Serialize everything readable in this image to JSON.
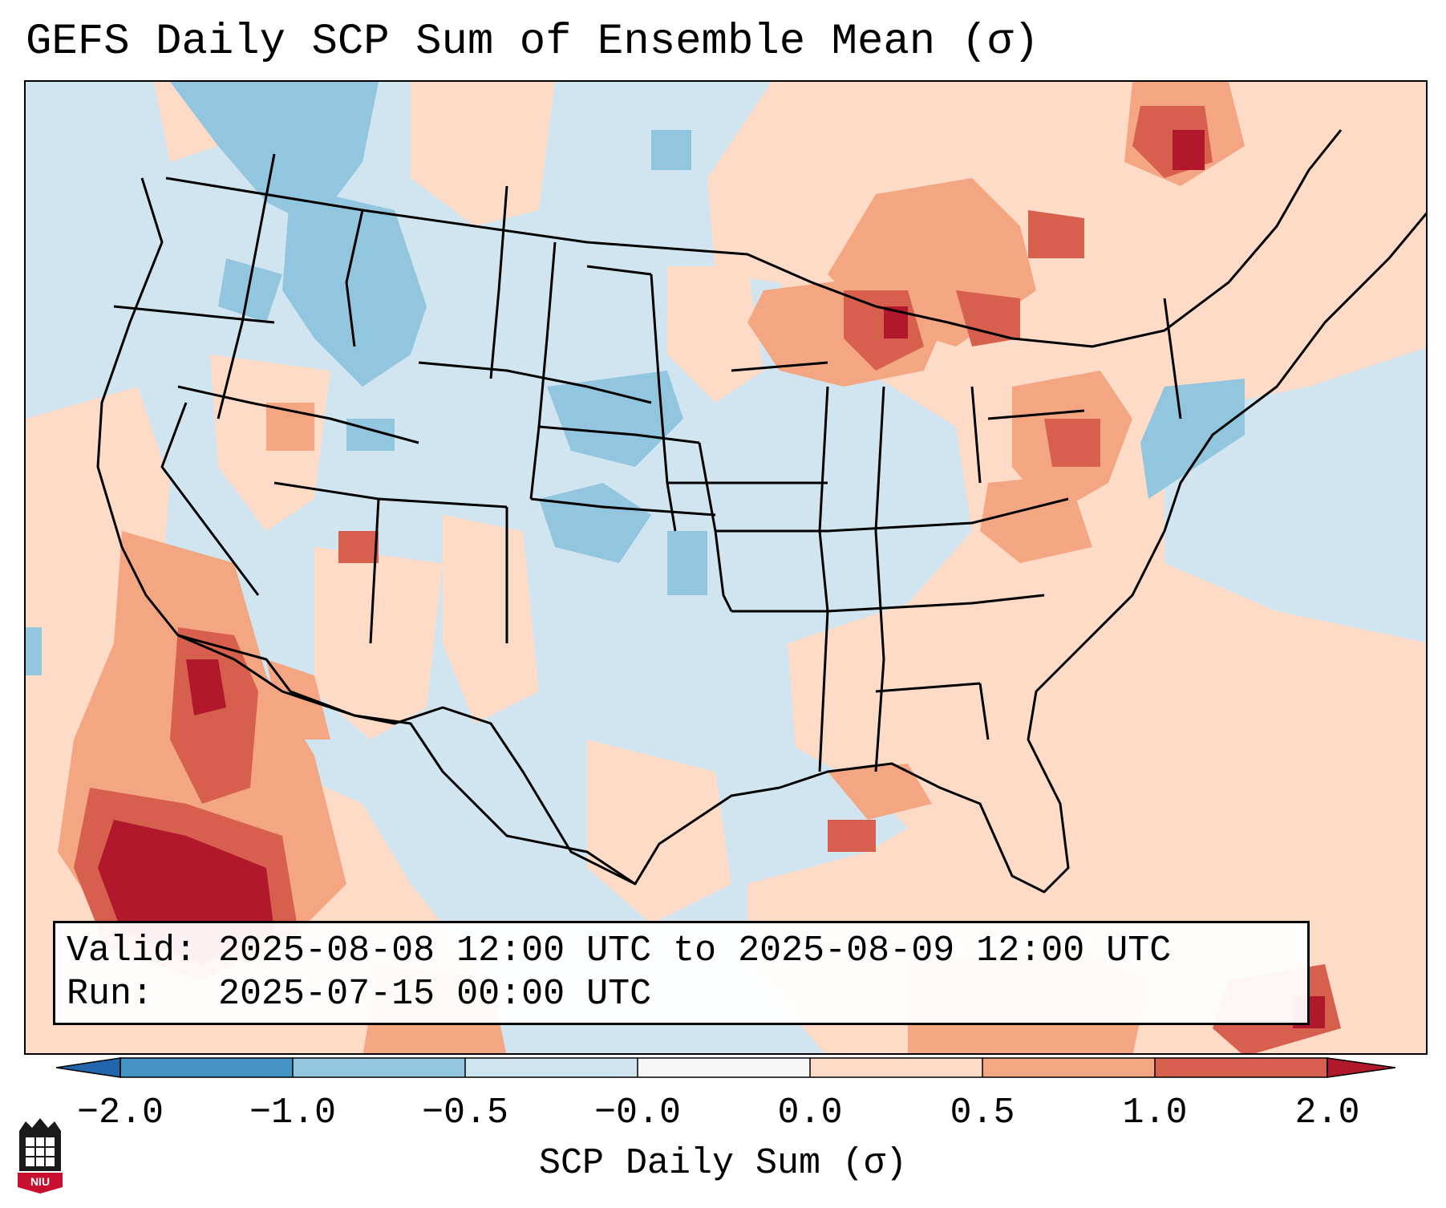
{
  "title": "GEFS Daily SCP Sum of Ensemble Mean (σ)",
  "info": {
    "valid_label": "Valid:",
    "valid_value": "2025-08-08 12:00 UTC to 2025-08-09 12:00 UTC",
    "run_label": "Run:",
    "run_value": "2025-07-15 00:00 UTC"
  },
  "colorbar": {
    "label": "SCP Daily Sum (σ)",
    "ticks": [
      "−2.0",
      "−1.0",
      "−0.5",
      "−0.0",
      "0.0",
      "0.5",
      "1.0",
      "2.0"
    ],
    "colors": [
      "#2166ac",
      "#4393c3",
      "#92c5de",
      "#d1e5f0",
      "#fddbc7",
      "#f4a582",
      "#d6604d",
      "#b2182b"
    ]
  },
  "logo": {
    "text": "NIU"
  },
  "colors": {
    "background": "#d1e5f0",
    "border": "#000000"
  }
}
